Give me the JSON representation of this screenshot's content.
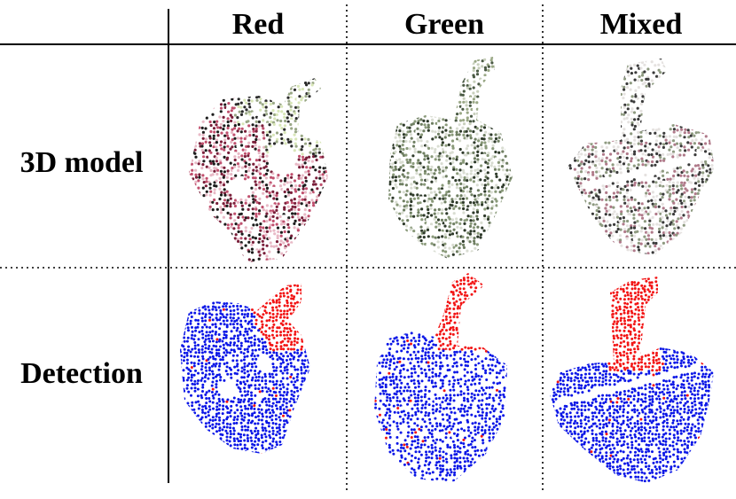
{
  "table": {
    "columns": [
      "Red",
      "Green",
      "Mixed"
    ],
    "rows": [
      "3D model",
      "Detection"
    ]
  },
  "colors": {
    "red_pepper": "#c0506e",
    "red_pepper_dark": "#7a1f3a",
    "green_pepper": "#6f7f62",
    "green_pepper_light": "#d9ddd2",
    "stem_green": "#9aa886",
    "mixed_light": "#e5e2e0",
    "mixed_dark": "#3a3a3a",
    "detect_body": "#0a16e6",
    "detect_stem": "#f21414"
  },
  "cells": [
    {
      "row": "3D model",
      "col": "Red",
      "kind": "model",
      "palette": "red"
    },
    {
      "row": "3D model",
      "col": "Green",
      "kind": "model",
      "palette": "green"
    },
    {
      "row": "3D model",
      "col": "Mixed",
      "kind": "model",
      "palette": "mixed"
    },
    {
      "row": "Detection",
      "col": "Red",
      "kind": "detection",
      "palette": "red"
    },
    {
      "row": "Detection",
      "col": "Green",
      "kind": "detection",
      "palette": "green"
    },
    {
      "row": "Detection",
      "col": "Mixed",
      "kind": "detection",
      "palette": "mixed"
    }
  ]
}
